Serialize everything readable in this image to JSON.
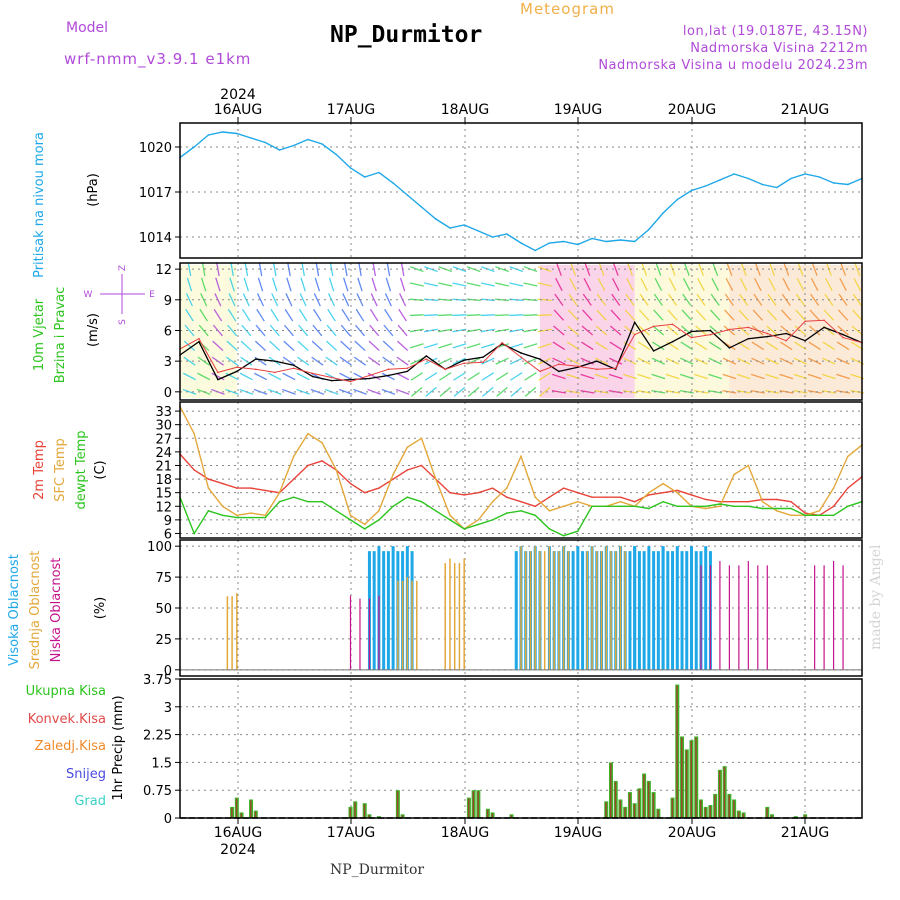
{
  "header": {
    "model_label": "Model",
    "model_name": "wrf-nmm_v3.9.1  e1km",
    "title": "NP_Durmitor",
    "subtitle": "Meteogram",
    "location_line1": "lon,lat (19.0187E, 43.15N)",
    "location_line2": "Nadmorska Visina 2212m",
    "location_line3": "Nadmorska Visina u modelu 2024.23m",
    "footer_title": "NP_Durmitor",
    "watermark": "made by Angel"
  },
  "colors": {
    "pressure": "#1fa8e8",
    "temp2m": "#e8443a",
    "sfc": "#e3a83a",
    "dewpt": "#2cc41e",
    "low_cloud": "#c4148c",
    "mid_cloud": "#e3a83a",
    "high_cloud": "#1fa8e8",
    "precip_total": "#3db52a",
    "precip_conv": "#e24a4a",
    "header_purple": "#b04ad8",
    "subtitle_orange": "#f0b04a"
  },
  "chart_data": [
    {
      "id": "pressure",
      "type": "line",
      "ylabel": "(hPa)",
      "side_label": "Pritisak na nivou mora",
      "x_ticks": [
        "16AUG",
        "17AUG",
        "18AUG",
        "19AUG",
        "20AUG",
        "21AUG"
      ],
      "x_year": "2024",
      "yticks": [
        1014,
        1017,
        1020
      ],
      "ylim": [
        1012.6,
        1021.6
      ],
      "grid": true,
      "x_hours": [
        0,
        3,
        6,
        9,
        12,
        15,
        18,
        21,
        24,
        27,
        30,
        33,
        36,
        39,
        42,
        45,
        48,
        51,
        54,
        57,
        60,
        63,
        66,
        69,
        72,
        75,
        78,
        81,
        84,
        87,
        90,
        93,
        96,
        99,
        102,
        105,
        108,
        111,
        114,
        117,
        120,
        123,
        126,
        129,
        132,
        135,
        138,
        141,
        144
      ],
      "values": [
        1019.3,
        1020.0,
        1020.8,
        1021.0,
        1020.9,
        1020.6,
        1020.3,
        1019.8,
        1020.1,
        1020.5,
        1020.2,
        1019.5,
        1018.6,
        1018.0,
        1018.3,
        1017.6,
        1016.8,
        1016.0,
        1015.2,
        1014.6,
        1014.8,
        1014.4,
        1014.0,
        1014.2,
        1013.6,
        1013.1,
        1013.6,
        1013.7,
        1013.5,
        1013.9,
        1013.7,
        1013.8,
        1013.7,
        1014.5,
        1015.6,
        1016.5,
        1017.1,
        1017.4,
        1017.8,
        1018.2,
        1017.9,
        1017.5,
        1017.3,
        1017.9,
        1018.2,
        1018.0,
        1017.6,
        1017.5,
        1017.9
      ]
    },
    {
      "id": "wind",
      "type": "line",
      "ylabel": "(m/s)",
      "side_label_1": "10m Vjetar",
      "side_label_2": "Brzina i Pravac",
      "compass": [
        "Z",
        "E",
        "W",
        "S"
      ],
      "yticks": [
        0,
        3,
        6,
        9,
        12
      ],
      "ylim": [
        -0.8,
        12.6
      ],
      "grid": true,
      "x_hours": [
        0,
        4,
        8,
        12,
        16,
        20,
        24,
        28,
        32,
        36,
        40,
        44,
        48,
        52,
        56,
        60,
        64,
        68,
        72,
        76,
        80,
        84,
        88,
        92,
        96,
        100,
        104,
        108,
        112,
        116,
        120,
        124,
        128,
        132,
        136,
        140,
        144
      ],
      "speed": [
        3.6,
        4.9,
        1.2,
        2.0,
        3.2,
        3.0,
        2.6,
        1.5,
        1.1,
        1.2,
        1.3,
        1.6,
        2.0,
        3.5,
        2.2,
        3.1,
        3.4,
        4.7,
        3.8,
        3.2,
        2.0,
        2.4,
        3.0,
        2.2,
        6.8,
        4.0,
        4.9,
        5.9,
        6.0,
        4.3,
        5.2,
        5.4,
        5.7,
        5.0,
        6.3,
        5.6,
        4.8
      ],
      "gusts": [
        4.2,
        5.2,
        1.9,
        2.4,
        2.2,
        1.9,
        2.3,
        1.8,
        1.4,
        1.0,
        1.6,
        2.2,
        2.3,
        3.2,
        2.2,
        2.8,
        2.9,
        4.8,
        3.4,
        2.0,
        2.7,
        2.5,
        2.2,
        2.3,
        5.6,
        6.4,
        6.6,
        5.3,
        5.6,
        6.1,
        6.3,
        5.7,
        5.0,
        6.9,
        7.0,
        5.3,
        4.8
      ]
    },
    {
      "id": "temperature",
      "type": "line",
      "ylabel": "(C)",
      "series_labels": [
        "2m Temp",
        "SFC Temp",
        "dewpt Temp"
      ],
      "yticks": [
        6,
        9,
        12,
        15,
        18,
        21,
        24,
        27,
        30,
        33
      ],
      "ylim": [
        5,
        35
      ],
      "grid": true,
      "x_hours": [
        0,
        3,
        6,
        9,
        12,
        15,
        18,
        21,
        24,
        27,
        30,
        33,
        36,
        39,
        42,
        45,
        48,
        51,
        54,
        57,
        60,
        63,
        66,
        69,
        72,
        75,
        78,
        81,
        84,
        87,
        90,
        93,
        96,
        99,
        102,
        105,
        108,
        111,
        114,
        117,
        120,
        123,
        126,
        129,
        132,
        135,
        138,
        141,
        144
      ],
      "series": [
        {
          "name": "2m Temp",
          "values": [
            23.5,
            20,
            18,
            17,
            16,
            16,
            15.5,
            15,
            18,
            21,
            22,
            20,
            17,
            15,
            16,
            18,
            20,
            21,
            18,
            15,
            14.5,
            15,
            16,
            14,
            13,
            12,
            14,
            16,
            15,
            14,
            14,
            14,
            13,
            14.5,
            15,
            15.5,
            14.5,
            13.5,
            13,
            13,
            13,
            13.5,
            13.5,
            13,
            10.5,
            10,
            12,
            16,
            18.5
          ]
        },
        {
          "name": "SFC Temp",
          "values": [
            34,
            28,
            16,
            12,
            10,
            10.5,
            10,
            15,
            23,
            28,
            26,
            20,
            10,
            8,
            11,
            19,
            25,
            27,
            18,
            10,
            7,
            9,
            13,
            16,
            23,
            14,
            11,
            12,
            13,
            12,
            12,
            13,
            12,
            15,
            17,
            15,
            12,
            11.5,
            12,
            19,
            21,
            13,
            11,
            10,
            10,
            11,
            16,
            23,
            25.5
          ]
        },
        {
          "name": "dewpt Temp",
          "values": [
            14,
            6,
            11,
            10,
            9.5,
            9.5,
            9.5,
            13,
            14,
            13,
            13,
            11,
            9,
            7,
            9,
            12,
            14,
            13,
            11,
            9,
            7,
            8,
            9,
            10.5,
            11,
            10,
            7,
            5.5,
            6.5,
            12,
            12,
            12,
            12,
            11.5,
            13,
            12,
            12,
            12,
            12.5,
            12,
            12,
            11.5,
            11.5,
            11.5,
            10,
            10,
            10,
            12,
            13
          ]
        }
      ]
    },
    {
      "id": "clouds",
      "type": "bar",
      "ylabel": "(%)",
      "series_labels": [
        "Visoka Oblacnost",
        "Srednja Oblacnost",
        "Niska Oblacnost"
      ],
      "yticks": [
        0,
        25,
        50,
        75,
        100
      ],
      "ylim": [
        -5,
        105
      ],
      "grid": true,
      "high": [
        {
          "from": 40,
          "to": 49,
          "value": 100
        },
        {
          "from": 71,
          "to": 76,
          "value": 100
        },
        {
          "from": 78,
          "to": 96,
          "value": 100
        },
        {
          "from": 96,
          "to": 102,
          "value": 100
        },
        {
          "from": 102,
          "to": 112,
          "value": 100
        }
      ],
      "mid": [
        {
          "from": 10,
          "to": 12,
          "value": 62
        },
        {
          "from": 46,
          "to": 50,
          "value": 75
        },
        {
          "from": 56,
          "to": 60,
          "value": 90
        },
        {
          "from": 72,
          "to": 82,
          "value": 100
        },
        {
          "from": 86,
          "to": 94,
          "value": 100
        }
      ],
      "low": [
        {
          "from": 110,
          "to": 124,
          "value": 88
        },
        {
          "from": 36,
          "to": 42,
          "value": 60
        },
        {
          "from": 134,
          "to": 140,
          "value": 88
        }
      ]
    },
    {
      "id": "precip",
      "type": "bar",
      "ylabel": "1hr Precip (mm)",
      "legend": [
        "Ukupna Kisa",
        "Konvek.Kisa",
        "Zaledj.Kisa",
        "Snijeg",
        "Grad"
      ],
      "yticks": [
        0,
        0.75,
        1.5,
        2.25,
        3,
        3.75
      ],
      "ylim": [
        0,
        3.75
      ],
      "grid": true,
      "x_ticks": [
        "16AUG",
        "17AUG",
        "18AUG",
        "19AUG",
        "20AUG",
        "21AUG"
      ],
      "x_year": "2024",
      "bars": [
        [
          11,
          0.3
        ],
        [
          12,
          0.55
        ],
        [
          13,
          0.15
        ],
        [
          15,
          0.5
        ],
        [
          16,
          0.2
        ],
        [
          36,
          0.3
        ],
        [
          37,
          0.45
        ],
        [
          39,
          0.4
        ],
        [
          40,
          0.1
        ],
        [
          42,
          0.05
        ],
        [
          46,
          0.75
        ],
        [
          47,
          0.1
        ],
        [
          61,
          0.55
        ],
        [
          62,
          0.75
        ],
        [
          63,
          0.75
        ],
        [
          65,
          0.25
        ],
        [
          66,
          0.15
        ],
        [
          70,
          0.1
        ],
        [
          90,
          0.45
        ],
        [
          91,
          1.5
        ],
        [
          92,
          1.0
        ],
        [
          93,
          0.5
        ],
        [
          94,
          0.3
        ],
        [
          95,
          0.7
        ],
        [
          96,
          0.4
        ],
        [
          97,
          0.8
        ],
        [
          98,
          1.2
        ],
        [
          99,
          1.0
        ],
        [
          100,
          0.7
        ],
        [
          101,
          0.25
        ],
        [
          104,
          0.55
        ],
        [
          105,
          3.6
        ],
        [
          106,
          2.2
        ],
        [
          107,
          1.85
        ],
        [
          108,
          2.1
        ],
        [
          109,
          2.2
        ],
        [
          110,
          0.5
        ],
        [
          111,
          0.3
        ],
        [
          112,
          0.35
        ],
        [
          113,
          0.65
        ],
        [
          114,
          1.3
        ],
        [
          115,
          1.4
        ],
        [
          116,
          0.65
        ],
        [
          117,
          0.5
        ],
        [
          118,
          0.2
        ],
        [
          119,
          0.15
        ],
        [
          124,
          0.3
        ],
        [
          125,
          0.1
        ],
        [
          130,
          0.05
        ],
        [
          132,
          0.1
        ]
      ]
    }
  ]
}
